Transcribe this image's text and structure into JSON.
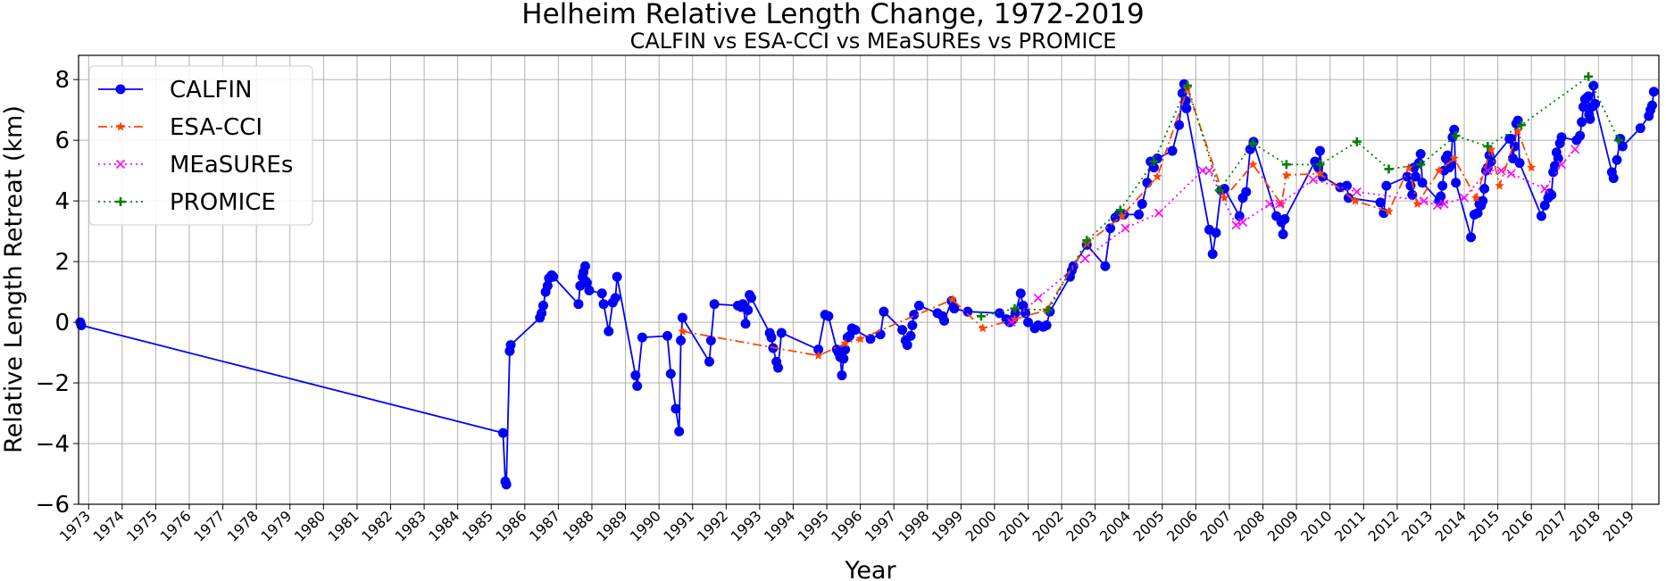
{
  "chart_data": {
    "type": "line",
    "title": "Helheim Relative Length Change, 1972-2019",
    "subtitle": "CALFIN vs ESA-CCI vs MEaSUREs vs PROMICE",
    "xlabel": "Year",
    "ylabel": "Relative Length Retreat (km)",
    "xlim": [
      1972.7,
      1985.0
    ],
    "xrange": [
      1972.7,
      2019.8
    ],
    "ylim": [
      -6,
      8.8
    ],
    "yticks": [
      "−6",
      "−4",
      "−2",
      "0",
      "2",
      "4",
      "6",
      "8"
    ],
    "ytick_values": [
      -6,
      -4,
      -2,
      0,
      2,
      4,
      6,
      8
    ],
    "xticks": [
      "1973",
      "1974",
      "1975",
      "1976",
      "1977",
      "1978",
      "1979",
      "1980",
      "1981",
      "1982",
      "1983",
      "1984",
      "1985",
      "1986",
      "1987",
      "1988",
      "1989",
      "1990",
      "1991",
      "1992",
      "1993",
      "1994",
      "1995",
      "1996",
      "1997",
      "1998",
      "1999",
      "2000",
      "2001",
      "2002",
      "2003",
      "2004",
      "2005",
      "2006",
      "2007",
      "2008",
      "2009",
      "2010",
      "2011",
      "2012",
      "2013",
      "2014",
      "2015",
      "2016",
      "2017",
      "2018",
      "2019"
    ],
    "grid": true,
    "legend_position": "top-left",
    "series": [
      {
        "name": "CALFIN",
        "color": "#0000ff",
        "style": "solid",
        "marker": "circle",
        "x": [
          1972.75,
          1972.78,
          1985.35,
          1985.42,
          1985.45,
          1985.55,
          1985.58,
          1986.45,
          1986.5,
          1986.55,
          1986.62,
          1986.68,
          1986.72,
          1986.8,
          1986.85,
          1987.6,
          1987.65,
          1987.72,
          1987.75,
          1987.8,
          1987.82,
          1987.85,
          1987.92,
          1988.3,
          1988.35,
          1988.5,
          1988.62,
          1988.7,
          1988.75,
          1989.3,
          1989.35,
          1989.5,
          1990.25,
          1990.35,
          1990.5,
          1990.6,
          1990.65,
          1990.7,
          1991.5,
          1991.55,
          1991.65,
          1992.35,
          1992.45,
          1992.5,
          1992.58,
          1992.65,
          1992.7,
          1992.75,
          1993.3,
          1993.35,
          1993.4,
          1993.5,
          1993.55,
          1993.65,
          1994.75,
          1994.95,
          1995.05,
          1995.3,
          1995.35,
          1995.4,
          1995.45,
          1995.5,
          1995.55,
          1995.62,
          1995.68,
          1995.75,
          1995.85,
          1996.3,
          1996.6,
          1996.7,
          1997.25,
          1997.35,
          1997.4,
          1997.5,
          1997.55,
          1997.6,
          1997.75,
          1998.3,
          1998.45,
          1998.5,
          1998.72,
          1998.8,
          1999.2,
          2000.15,
          2000.35,
          2000.45,
          2000.55,
          2000.62,
          2000.78,
          2000.85,
          2000.92,
          2001.0,
          2001.2,
          2001.3,
          2001.45,
          2001.55,
          2001.65,
          2002.25,
          2002.3,
          2002.35,
          2002.75,
          2003.3,
          2003.45,
          2003.6,
          2003.7,
          2003.85,
          2004.3,
          2004.4,
          2004.55,
          2004.65,
          2004.75,
          2004.85,
          2005.3,
          2005.5,
          2005.6,
          2005.65,
          2005.7,
          2005.72,
          2006.4,
          2006.5,
          2006.6,
          2006.75,
          2006.85,
          2007.3,
          2007.4,
          2007.5,
          2007.62,
          2007.72,
          2008.4,
          2008.55,
          2008.6,
          2008.65,
          2009.55,
          2009.65,
          2009.7,
          2009.78,
          2010.3,
          2010.5,
          2010.55,
          2011.5,
          2011.6,
          2011.68,
          2012.3,
          2012.4,
          2012.45,
          2012.5,
          2012.55,
          2012.65,
          2012.7,
          2012.75,
          2013.25,
          2013.3,
          2013.35,
          2013.4,
          2013.45,
          2013.5,
          2013.55,
          2013.6,
          2013.65,
          2013.7,
          2013.75,
          2014.2,
          2014.3,
          2014.4,
          2014.45,
          2014.5,
          2014.55,
          2014.6,
          2014.65,
          2014.7,
          2014.75,
          2014.8,
          2015.35,
          2015.4,
          2015.45,
          2015.5,
          2015.55,
          2015.6,
          2015.65,
          2016.3,
          2016.4,
          2016.5,
          2016.55,
          2016.6,
          2016.65,
          2016.7,
          2016.75,
          2016.8,
          2016.85,
          2016.9,
          2017.35,
          2017.45,
          2017.5,
          2017.55,
          2017.6,
          2017.65,
          2017.7,
          2017.72,
          2017.75,
          2017.8,
          2017.85,
          2017.9,
          2018.4,
          2018.45,
          2018.55,
          2018.65,
          2018.72,
          2019.25,
          2019.5,
          2019.55,
          2019.6,
          2019.65
        ],
        "y": [
          0.0,
          -0.1,
          -3.65,
          -5.25,
          -5.35,
          -0.95,
          -0.75,
          0.15,
          0.3,
          0.55,
          1.0,
          1.2,
          1.45,
          1.55,
          1.5,
          0.6,
          1.2,
          1.5,
          1.65,
          1.85,
          1.35,
          1.3,
          1.05,
          0.95,
          0.6,
          -0.3,
          0.65,
          0.8,
          1.5,
          -1.75,
          -2.1,
          -0.5,
          -0.45,
          -1.7,
          -2.85,
          -3.6,
          -0.6,
          0.15,
          -1.3,
          -0.6,
          0.6,
          0.55,
          0.5,
          0.6,
          -0.05,
          0.4,
          0.9,
          0.8,
          -0.35,
          -0.5,
          -0.85,
          -1.3,
          -1.5,
          -0.35,
          -0.9,
          0.25,
          0.2,
          -0.9,
          -1.0,
          -1.15,
          -1.75,
          -1.2,
          -0.9,
          -0.5,
          -0.45,
          -0.2,
          -0.25,
          -0.55,
          -0.4,
          0.35,
          -0.25,
          -0.6,
          -0.75,
          -0.45,
          -0.1,
          0.25,
          0.55,
          0.3,
          0.2,
          0.05,
          0.7,
          0.45,
          0.35,
          0.3,
          0.1,
          0.0,
          0.1,
          0.3,
          0.95,
          0.55,
          0.3,
          0.0,
          -0.2,
          -0.1,
          -0.15,
          -0.1,
          0.35,
          1.5,
          1.7,
          1.85,
          2.55,
          1.85,
          3.1,
          3.45,
          3.55,
          3.55,
          3.55,
          3.9,
          4.6,
          5.3,
          5.1,
          5.4,
          5.65,
          6.5,
          7.55,
          7.85,
          7.3,
          7.05,
          3.05,
          2.25,
          2.95,
          4.35,
          4.4,
          3.5,
          4.1,
          4.3,
          5.7,
          5.95,
          3.5,
          3.3,
          2.9,
          3.4,
          5.3,
          5.1,
          5.65,
          4.8,
          4.45,
          4.5,
          4.1,
          3.95,
          3.6,
          4.5,
          4.8,
          4.5,
          4.2,
          5.1,
          4.8,
          5.25,
          5.55,
          4.6,
          4.0,
          4.15,
          4.5,
          5.0,
          5.4,
          5.5,
          5.1,
          5.2,
          6.1,
          6.35,
          4.6,
          2.8,
          3.55,
          3.6,
          3.9,
          3.85,
          4.0,
          4.4,
          5.0,
          5.1,
          5.5,
          5.3,
          6.05,
          6.05,
          5.4,
          5.8,
          6.55,
          6.65,
          5.25,
          3.5,
          3.85,
          4.1,
          4.25,
          4.2,
          4.95,
          5.15,
          5.6,
          5.4,
          5.9,
          6.1,
          6.0,
          6.15,
          6.6,
          7.1,
          7.35,
          7.4,
          7.45,
          6.85,
          6.7,
          7.1,
          7.8,
          7.2,
          4.95,
          4.75,
          5.35,
          6.05,
          5.8,
          6.4,
          6.8,
          7.0,
          7.15,
          7.6
        ]
      },
      {
        "name": "ESA-CCI",
        "color": "#ff4500",
        "style": "dashdot",
        "marker": "star",
        "x": [
          1990.7,
          1994.75,
          1995.55,
          1996.0,
          1998.75,
          1999.65,
          2000.6,
          2001.55,
          2002.75,
          2003.8,
          2004.85,
          2005.75,
          2006.85,
          2007.7,
          2008.55,
          2008.7,
          2009.7,
          2010.75,
          2011.75,
          2012.35,
          2012.6,
          2013.25,
          2013.7,
          2014.35,
          2014.8,
          2015.05,
          2015.6,
          2016.0
        ],
        "y": [
          -0.3,
          -1.1,
          -0.7,
          -0.55,
          0.75,
          -0.2,
          0.1,
          0.4,
          2.6,
          3.5,
          4.8,
          7.7,
          4.1,
          5.2,
          3.9,
          4.85,
          4.9,
          4.0,
          3.65,
          5.1,
          3.9,
          5.0,
          5.4,
          4.1,
          5.7,
          4.5,
          6.3,
          5.1
        ]
      },
      {
        "name": "MEaSUREs",
        "color": "#ff00ff",
        "style": "dotted",
        "marker": "x",
        "x": [
          2000.5,
          2001.3,
          2002.7,
          2003.9,
          2004.9,
          2006.2,
          2006.4,
          2007.2,
          2007.4,
          2008.2,
          2008.5,
          2009.5,
          2010.8,
          2012.8,
          2013.2,
          2013.4,
          2014.0,
          2014.7,
          2015.1,
          2015.4,
          2016.4,
          2016.9,
          2017.3
        ],
        "y": [
          0.0,
          0.8,
          2.1,
          3.1,
          3.6,
          5.0,
          5.0,
          3.2,
          3.3,
          3.9,
          3.9,
          4.7,
          4.3,
          4.0,
          3.85,
          3.9,
          4.1,
          5.0,
          5.0,
          4.9,
          4.4,
          5.2,
          5.7
        ]
      },
      {
        "name": "PROMICE",
        "color": "#008000",
        "style": "dotted",
        "marker": "plus",
        "x": [
          1999.6,
          2000.6,
          2001.6,
          2002.75,
          2003.75,
          2004.75,
          2005.75,
          2006.7,
          2007.7,
          2008.7,
          2009.7,
          2010.8,
          2011.75,
          2012.7,
          2013.75,
          2014.7,
          2015.7,
          2017.7,
          2018.6
        ],
        "y": [
          0.2,
          0.45,
          0.4,
          2.7,
          3.7,
          5.3,
          7.8,
          4.35,
          5.9,
          5.2,
          5.2,
          5.95,
          5.05,
          5.2,
          6.15,
          5.8,
          6.5,
          8.1,
          6.0
        ]
      }
    ]
  }
}
